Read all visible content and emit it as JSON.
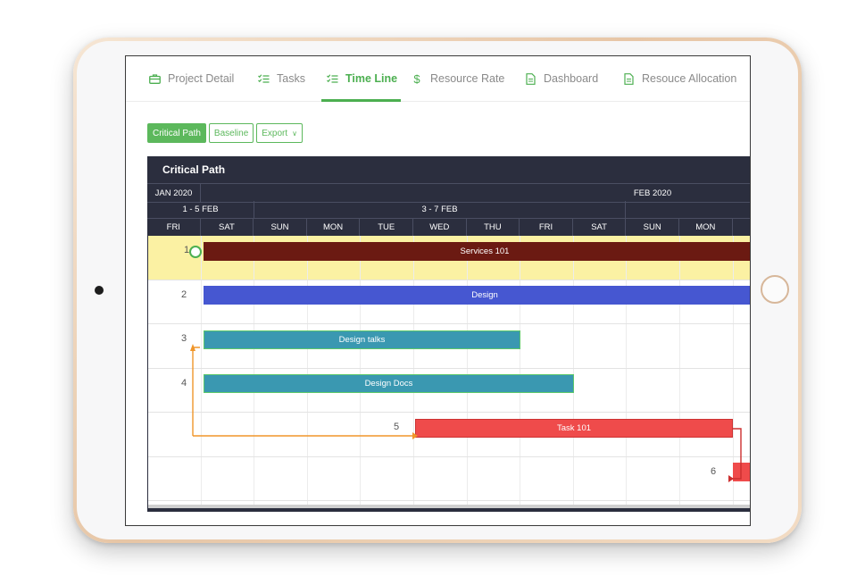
{
  "nav": {
    "tabs": [
      {
        "label": "Project Detail",
        "icon": "briefcase-icon",
        "active": false
      },
      {
        "label": "Tasks",
        "icon": "checklist-icon",
        "active": false
      },
      {
        "label": "Time Line",
        "icon": "checklist-icon",
        "active": true
      },
      {
        "label": "Resource Rate",
        "icon": "dollar-icon",
        "active": false
      },
      {
        "label": "Dashboard",
        "icon": "document-icon",
        "active": false
      },
      {
        "label": "Resouce Allocation",
        "icon": "document-icon",
        "active": false
      }
    ]
  },
  "toolbar": {
    "critical_path": "Critical Path",
    "baseline": "Baseline",
    "export": "Export"
  },
  "gantt": {
    "title": "Critical Path",
    "months": [
      "JAN 2020",
      "FEB 2020"
    ],
    "weeks": [
      "1 - 5 FEB",
      "3 - 7 FEB"
    ],
    "days": [
      "FRI",
      "SAT",
      "SUN",
      "MON",
      "TUE",
      "WED",
      "THU",
      "FRI",
      "SAT",
      "SUN",
      "MON"
    ],
    "rows": [
      "1",
      "2",
      "3",
      "4",
      "5",
      "6"
    ],
    "tasks": [
      "Services 101",
      "Design",
      "Design talks",
      "Design Docs",
      "Task 101",
      ""
    ]
  },
  "colors": {
    "accent": "#4caf50",
    "header_bg": "#2b2e3e",
    "highlight_row": "#fbf1a3",
    "services_bar": "#6b1a12",
    "design_bar": "#4657d1",
    "teal_bar": "#3a98b1",
    "red_bar": "#ef4b4b",
    "dependency_line": "#f0962a"
  }
}
